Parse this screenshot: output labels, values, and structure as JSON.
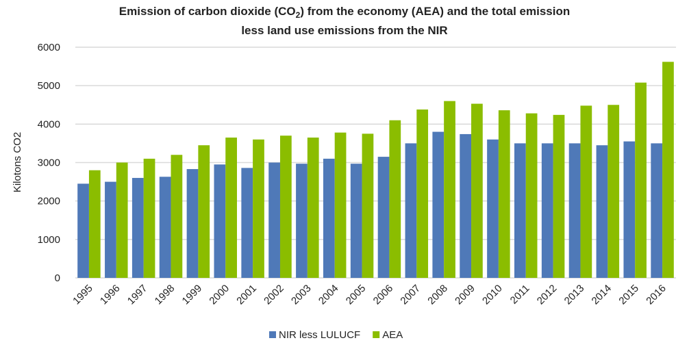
{
  "chart_data": {
    "type": "bar",
    "title": [
      "Emission of carbon dioxide (CO2) from the economy (AEA) and the total emission",
      "less land use emissions from the NIR"
    ],
    "xlabel": "",
    "ylabel": "Kilotons CO2",
    "ylim": [
      0,
      6000
    ],
    "yticks": [
      0,
      1000,
      2000,
      3000,
      4000,
      5000,
      6000
    ],
    "grid": true,
    "legend_position": "bottom",
    "categories": [
      "1995",
      "1996",
      "1997",
      "1998",
      "1999",
      "2000",
      "2001",
      "2002",
      "2003",
      "2004",
      "2005",
      "2006",
      "2007",
      "2008",
      "2009",
      "2010",
      "2011",
      "2012",
      "2013",
      "2014",
      "2015",
      "2016"
    ],
    "series": [
      {
        "name": "NIR less LULUCF",
        "color": "#4f79b8",
        "values": [
          2450,
          2500,
          2600,
          2630,
          2830,
          2950,
          2860,
          3000,
          2970,
          3100,
          2970,
          3150,
          3500,
          3800,
          3740,
          3600,
          3500,
          3500,
          3500,
          3450,
          3550,
          3500
        ]
      },
      {
        "name": "AEA",
        "color": "#8bbd00",
        "values": [
          2800,
          3000,
          3100,
          3200,
          3450,
          3650,
          3600,
          3700,
          3650,
          3780,
          3750,
          4100,
          4380,
          4600,
          4530,
          4360,
          4280,
          4240,
          4480,
          4500,
          5080,
          5620
        ]
      }
    ]
  }
}
